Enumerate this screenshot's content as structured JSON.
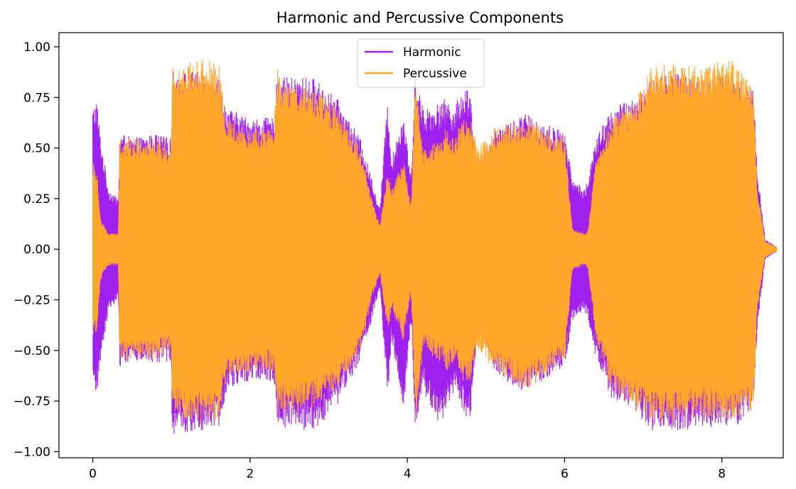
{
  "chart_data": {
    "type": "line",
    "title": "Harmonic and Percussive Components",
    "xlabel": "",
    "ylabel": "",
    "xlim": [
      -0.43,
      8.78
    ],
    "ylim": [
      -1.03,
      1.07
    ],
    "x_ticks": [
      0,
      2,
      4,
      6,
      8
    ],
    "x_tick_labels": [
      "0",
      "2",
      "4",
      "6",
      "8"
    ],
    "y_ticks": [
      1.0,
      0.75,
      0.5,
      0.25,
      0.0,
      -0.25,
      -0.5,
      -0.75,
      -1.0
    ],
    "y_tick_labels": [
      "1.00",
      "0.75",
      "0.50",
      "0.25",
      "0.00",
      "−0.25",
      "−0.50",
      "−0.75",
      "−1.00"
    ],
    "grid": false,
    "legend_position": "top-center",
    "series": [
      {
        "name": "Harmonic",
        "color": "#a020f0",
        "envelope": {
          "x": [
            0.0,
            0.05,
            0.1,
            0.2,
            0.33,
            0.34,
            0.5,
            0.8,
            1.0,
            1.01,
            1.3,
            1.6,
            1.7,
            2.0,
            2.3,
            2.35,
            2.4,
            2.8,
            3.1,
            3.4,
            3.55,
            3.65,
            3.75,
            3.8,
            3.95,
            4.05,
            4.1,
            4.2,
            4.4,
            4.5,
            4.6,
            4.7,
            4.8,
            4.9,
            5.1,
            5.5,
            6.0,
            6.1,
            6.25,
            6.3,
            6.4,
            6.6,
            6.9,
            7.1,
            7.4,
            7.8,
            8.1,
            8.4,
            8.45,
            8.55,
            8.7
          ],
          "upper": [
            0.7,
            0.75,
            0.55,
            0.3,
            0.25,
            0.58,
            0.55,
            0.57,
            0.55,
            0.88,
            0.88,
            0.86,
            0.7,
            0.65,
            0.65,
            0.88,
            0.85,
            0.85,
            0.75,
            0.55,
            0.35,
            0.2,
            0.75,
            0.45,
            0.68,
            0.35,
            0.9,
            0.7,
            0.72,
            0.75,
            0.7,
            0.8,
            0.8,
            0.35,
            0.6,
            0.67,
            0.58,
            0.35,
            0.3,
            0.35,
            0.55,
            0.7,
            0.75,
            0.85,
            0.87,
            0.85,
            0.85,
            0.8,
            0.4,
            0.05,
            0.01
          ],
          "lower": [
            -0.7,
            -0.73,
            -0.55,
            -0.3,
            -0.25,
            -0.58,
            -0.55,
            -0.57,
            -0.55,
            -0.92,
            -0.9,
            -0.88,
            -0.7,
            -0.65,
            -0.65,
            -0.9,
            -0.88,
            -0.9,
            -0.78,
            -0.55,
            -0.35,
            -0.2,
            -0.75,
            -0.45,
            -0.82,
            -0.35,
            -0.88,
            -0.7,
            -0.9,
            -0.78,
            -0.7,
            -0.8,
            -0.85,
            -0.35,
            -0.6,
            -0.72,
            -0.58,
            -0.35,
            -0.3,
            -0.35,
            -0.55,
            -0.75,
            -0.8,
            -0.9,
            -0.9,
            -0.88,
            -0.9,
            -0.8,
            -0.4,
            -0.05,
            -0.01
          ]
        }
      },
      {
        "name": "Percussive",
        "color": "#ffa62b",
        "envelope": {
          "x": [
            0.0,
            0.05,
            0.1,
            0.2,
            0.33,
            0.34,
            0.5,
            0.8,
            1.0,
            1.01,
            1.3,
            1.6,
            1.7,
            2.0,
            2.3,
            2.35,
            2.4,
            2.8,
            3.1,
            3.4,
            3.55,
            3.65,
            3.75,
            3.8,
            3.95,
            4.05,
            4.1,
            4.2,
            4.4,
            4.5,
            4.6,
            4.7,
            4.8,
            4.9,
            5.1,
            5.5,
            6.0,
            6.1,
            6.25,
            6.3,
            6.4,
            6.6,
            6.9,
            7.1,
            7.4,
            7.8,
            8.1,
            8.4,
            8.45,
            8.55,
            8.7
          ],
          "upper": [
            0.45,
            0.4,
            0.15,
            0.08,
            0.08,
            0.55,
            0.55,
            0.55,
            0.5,
            0.9,
            0.95,
            0.92,
            0.65,
            0.6,
            0.6,
            0.9,
            0.82,
            0.8,
            0.7,
            0.5,
            0.25,
            0.12,
            0.4,
            0.3,
            0.45,
            0.2,
            0.85,
            0.5,
            0.55,
            0.6,
            0.55,
            0.65,
            0.65,
            0.5,
            0.6,
            0.65,
            0.55,
            0.1,
            0.08,
            0.1,
            0.45,
            0.65,
            0.75,
            0.9,
            0.92,
            0.9,
            0.95,
            0.8,
            0.3,
            0.04,
            0.01
          ],
          "lower": [
            -0.45,
            -0.4,
            -0.15,
            -0.08,
            -0.08,
            -0.55,
            -0.55,
            -0.55,
            -0.5,
            -0.82,
            -0.85,
            -0.85,
            -0.65,
            -0.6,
            -0.6,
            -0.82,
            -0.8,
            -0.78,
            -0.7,
            -0.5,
            -0.25,
            -0.12,
            -0.4,
            -0.3,
            -0.45,
            -0.2,
            -0.88,
            -0.5,
            -0.55,
            -0.6,
            -0.55,
            -0.65,
            -0.65,
            -0.5,
            -0.6,
            -0.7,
            -0.55,
            -0.1,
            -0.08,
            -0.1,
            -0.45,
            -0.7,
            -0.8,
            -0.85,
            -0.85,
            -0.83,
            -0.85,
            -0.8,
            -0.3,
            -0.04,
            -0.01
          ]
        }
      }
    ]
  }
}
